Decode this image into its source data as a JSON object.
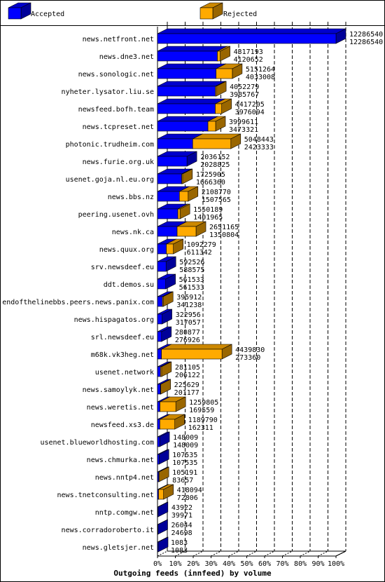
{
  "colors": {
    "accepted": "#0000ff",
    "accepted_top": "#0000cc",
    "accepted_side": "#000099",
    "rejected": "#ffaa00",
    "rejected_top": "#cc8800",
    "rejected_side": "#996600",
    "grid": "#000000"
  },
  "chart_data": {
    "type": "bar",
    "orientation": "horizontal",
    "stacked": true,
    "title": "Outgoing feeds (innfeed) by volume",
    "legend": {
      "placement": "top",
      "entries": [
        "Accepted",
        "Rejected"
      ]
    },
    "x_ticks": [
      "0%",
      "10%",
      "20%",
      "30%",
      "40%",
      "50%",
      "60%",
      "70%",
      "80%",
      "90%",
      "100%"
    ],
    "xlim": [
      0,
      12286540
    ],
    "grid": true,
    "categories": [
      "news.netfront.net",
      "news.dne3.net",
      "news.sonologic.net",
      "nyheter.lysator.liu.se",
      "newsfeed.bofh.team",
      "news.tcpreset.net",
      "photonic.trudheim.com",
      "news.furie.org.uk",
      "usenet.goja.nl.eu.org",
      "news.bbs.nz",
      "peering.usenet.ovh",
      "news.nk.ca",
      "news.quux.org",
      "srv.newsdeef.eu",
      "ddt.demos.su",
      "endofthelinebbs.peers.news.panix.com",
      "news.hispagatos.org",
      "srl.newsdeef.eu",
      "m68k.vk3heg.net",
      "usenet.network",
      "news.samoylyk.net",
      "news.weretis.net",
      "newsfeed.xs3.de",
      "usenet.blueworldhosting.com",
      "news.chmurka.net",
      "news.nntp4.net",
      "news.tnetconsulting.net",
      "nntp.comgw.net",
      "news.corradoroberto.it",
      "news.gletsjer.net"
    ],
    "series": [
      {
        "name": "Accepted",
        "values": [
          12286540,
          4120652,
          4033008,
          3985767,
          3976094,
          3473321,
          2423333,
          2028825,
          1666360,
          1507565,
          1401965,
          1350804,
          611342,
          588575,
          561533,
          341238,
          317057,
          276926,
          273360,
          206122,
          201177,
          169559,
          162311,
          148009,
          107535,
          83657,
          72806,
          39971,
          24698,
          1083
        ]
      },
      {
        "name": "Rejected",
        "values": [
          0,
          196541,
          1118256,
          66512,
          441111,
          526290,
          2625110,
          7327,
          59545,
          601205,
          148224,
          1300361,
          480937,
          3951,
          0,
          54674,
          5899,
          3951,
          4166470,
          74983,
          24452,
          1090246,
          1027479,
          0,
          0,
          21534,
          345288,
          3951,
          1346,
          0
        ]
      }
    ],
    "totals": [
      12286540,
      4317193,
      5151264,
      4052279,
      4417205,
      3999611,
      5048443,
      2036152,
      1725905,
      2108770,
      1550189,
      2651165,
      1092279,
      592526,
      561533,
      395912,
      322956,
      280877,
      4439830,
      281105,
      225629,
      1259805,
      1189790,
      148009,
      107535,
      105191,
      418094,
      43922,
      26044,
      1083
    ],
    "accepted_labels": [
      "12286540",
      "4120652",
      "4033008",
      "3985767",
      "3976094",
      "3473321",
      "2423333",
      "2028825",
      "1666360",
      "1507565",
      "1401965",
      "1350804",
      "611342",
      "588575",
      "561533",
      "341238",
      "317057",
      "276926",
      "273360",
      "206122",
      "201177",
      "169559",
      "162311",
      "148009",
      "107535",
      "83657",
      "72806",
      "39971",
      "24698",
      "1083"
    ],
    "total_labels": [
      "12286540",
      "4317193",
      "5151264",
      "4052279",
      "4417205",
      "3999611",
      "5048443",
      "2036152",
      "1725905",
      "2108770",
      "1550189",
      "2651165",
      "1092279",
      "592526",
      "561533",
      "395912",
      "322956",
      "280877",
      "4439830",
      "281105",
      "225629",
      "1259805",
      "1189790",
      "148009",
      "107535",
      "105191",
      "418094",
      "43922",
      "26044",
      "1083"
    ]
  }
}
